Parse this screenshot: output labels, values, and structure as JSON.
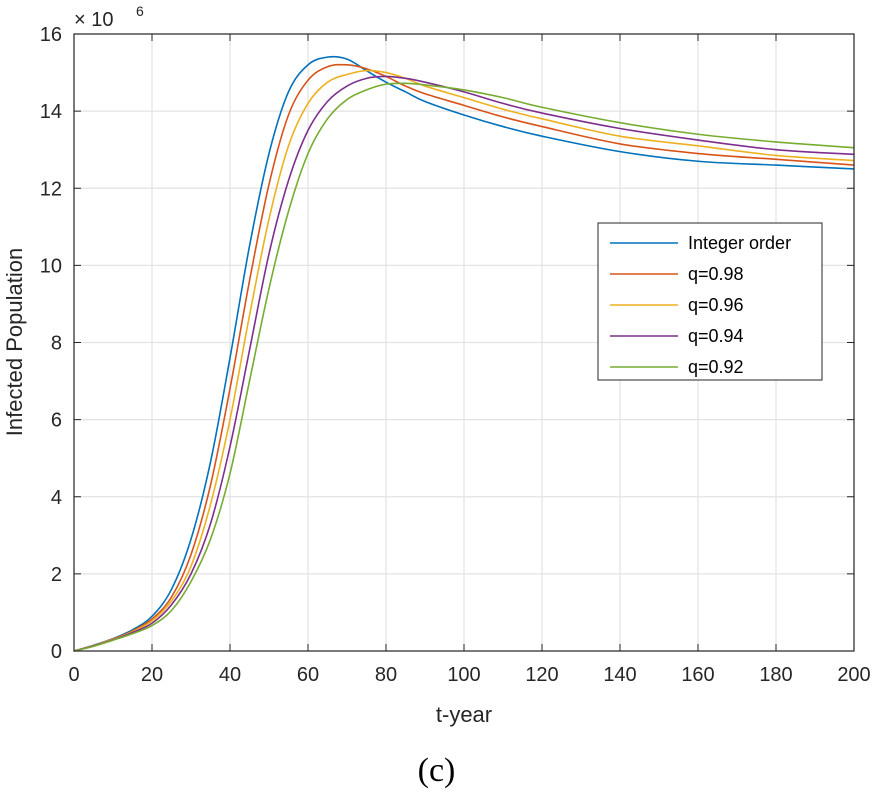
{
  "caption": "(c)",
  "chart_data": {
    "type": "line",
    "title": "",
    "xlabel": "t-year",
    "ylabel": "Infected Population",
    "exponent_base": "× 10",
    "exponent_power": "6",
    "xlim": [
      0,
      200
    ],
    "ylim": [
      0,
      16
    ],
    "xticks": [
      0,
      20,
      40,
      60,
      80,
      100,
      120,
      140,
      160,
      180,
      200
    ],
    "yticks": [
      0,
      2,
      4,
      6,
      8,
      10,
      12,
      14,
      16
    ],
    "grid": true,
    "legend_position": "right-center",
    "x": [
      0,
      5,
      10,
      15,
      20,
      25,
      30,
      35,
      40,
      45,
      50,
      55,
      60,
      65,
      70,
      75,
      80,
      85,
      90,
      100,
      110,
      120,
      140,
      160,
      180,
      200
    ],
    "series": [
      {
        "name": "Integer order",
        "color": "#0072BD",
        "values": [
          0.0,
          0.15,
          0.32,
          0.55,
          0.9,
          1.6,
          2.9,
          4.9,
          7.6,
          10.5,
          12.9,
          14.5,
          15.2,
          15.4,
          15.35,
          15.05,
          14.75,
          14.5,
          14.25,
          13.9,
          13.6,
          13.35,
          12.95,
          12.7,
          12.6,
          12.5
        ]
      },
      {
        "name": "q=0.98",
        "color": "#D95319",
        "values": [
          0.0,
          0.14,
          0.31,
          0.52,
          0.83,
          1.4,
          2.5,
          4.3,
          6.8,
          9.6,
          12.1,
          13.9,
          14.8,
          15.15,
          15.2,
          15.1,
          14.9,
          14.65,
          14.45,
          14.15,
          13.85,
          13.6,
          13.15,
          12.9,
          12.75,
          12.6
        ]
      },
      {
        "name": "q=0.96",
        "color": "#EDB120",
        "values": [
          0.0,
          0.14,
          0.3,
          0.5,
          0.78,
          1.3,
          2.2,
          3.8,
          6.0,
          8.7,
          11.2,
          13.1,
          14.2,
          14.75,
          14.95,
          15.05,
          15.0,
          14.85,
          14.65,
          14.35,
          14.05,
          13.8,
          13.35,
          13.1,
          12.85,
          12.72
        ]
      },
      {
        "name": "q=0.94",
        "color": "#7E2F8E",
        "values": [
          0.0,
          0.13,
          0.29,
          0.48,
          0.72,
          1.2,
          2.0,
          3.3,
          5.3,
          7.8,
          10.3,
          12.2,
          13.5,
          14.25,
          14.65,
          14.85,
          14.9,
          14.85,
          14.75,
          14.5,
          14.2,
          13.95,
          13.55,
          13.25,
          13.0,
          12.88
        ]
      },
      {
        "name": "q=0.92",
        "color": "#77AC30",
        "values": [
          0.0,
          0.12,
          0.28,
          0.45,
          0.66,
          1.05,
          1.8,
          2.9,
          4.6,
          7.0,
          9.4,
          11.4,
          12.9,
          13.8,
          14.3,
          14.55,
          14.7,
          14.72,
          14.68,
          14.55,
          14.35,
          14.1,
          13.7,
          13.4,
          13.2,
          13.05
        ]
      }
    ]
  }
}
